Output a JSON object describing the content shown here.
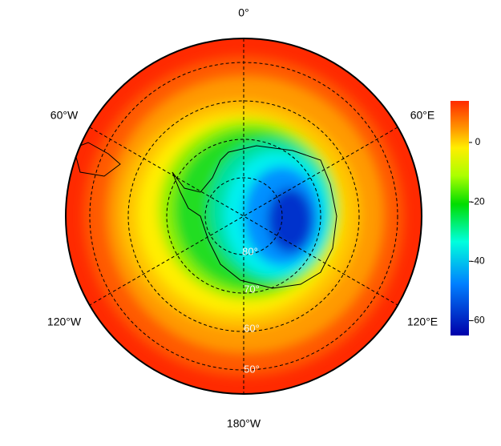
{
  "map": {
    "longitude_labels": [
      "0°",
      "60°E",
      "120°E",
      "180°W",
      "120°W",
      "60°W"
    ],
    "latitude_labels": [
      "80°",
      "70°",
      "60°",
      "50°"
    ]
  },
  "colorbar": {
    "range": [
      -65,
      14
    ],
    "ticks": [
      0,
      -20,
      -40,
      -60
    ]
  }
}
